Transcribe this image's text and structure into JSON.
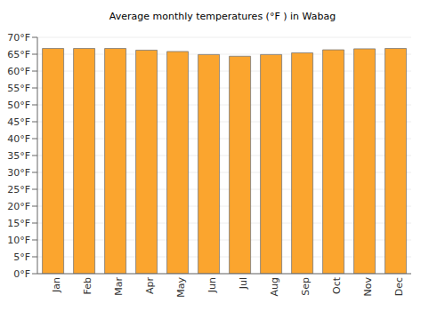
{
  "chart_data": {
    "type": "bar",
    "title": "Average monthly temperatures (°F ) in Wabag",
    "categories": [
      "Jan",
      "Feb",
      "Mar",
      "Apr",
      "May",
      "Jun",
      "Jul",
      "Aug",
      "Sep",
      "Oct",
      "Nov",
      "Dec"
    ],
    "values": [
      66.7,
      66.7,
      66.7,
      66.2,
      65.8,
      64.9,
      64.4,
      64.9,
      65.4,
      66.3,
      66.6,
      66.7
    ],
    "color": "#fba52e",
    "ylim": [
      0,
      70
    ],
    "yticks": [
      {
        "value": 0,
        "label": "0°F"
      },
      {
        "value": 5,
        "label": "5°F"
      },
      {
        "value": 10,
        "label": "10°F"
      },
      {
        "value": 15,
        "label": "15°F"
      },
      {
        "value": 20,
        "label": "20°F"
      },
      {
        "value": 25,
        "label": "25°F"
      },
      {
        "value": 30,
        "label": "30°F"
      },
      {
        "value": 35,
        "label": "35°F"
      },
      {
        "value": 40,
        "label": "40°F"
      },
      {
        "value": 45,
        "label": "45°F"
      },
      {
        "value": 50,
        "label": "50°F"
      },
      {
        "value": 55,
        "label": "55°F"
      },
      {
        "value": 60,
        "label": "60°F"
      },
      {
        "value": 65,
        "label": "65°F"
      },
      {
        "value": 70,
        "label": "70°F"
      }
    ],
    "grid": true
  }
}
